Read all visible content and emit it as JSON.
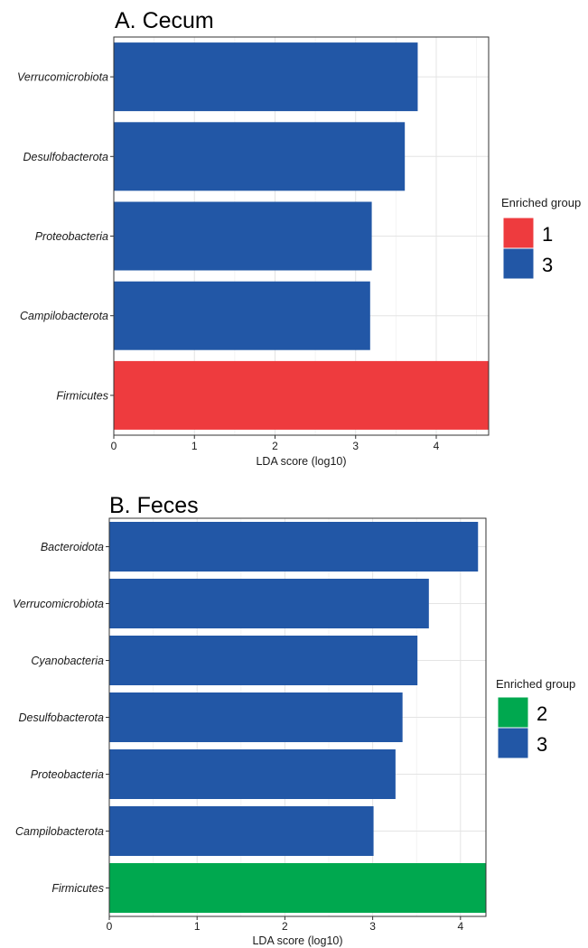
{
  "chart_data": [
    {
      "type": "bar",
      "orientation": "horizontal",
      "title": "A. Cecum",
      "xlabel": "LDA score (log10)",
      "ylabel": "",
      "xlim": [
        0,
        4.65
      ],
      "xticks": [
        "0",
        "1",
        "2",
        "3",
        "4"
      ],
      "grid": true,
      "legend_position": "right",
      "legend_title": "Enriched group",
      "legend": [
        {
          "label": "1",
          "color": "#ee3b3e"
        },
        {
          "label": "3",
          "color": "#2257a6"
        }
      ],
      "categories": [
        "Verrucomicrobiota",
        "Desulfobacterota",
        "Proteobacteria",
        "Campilobacterota",
        "Firmicutes"
      ],
      "values": [
        3.77,
        3.61,
        3.2,
        3.18,
        4.65
      ],
      "groups": [
        "3",
        "3",
        "3",
        "3",
        "1"
      ]
    },
    {
      "type": "bar",
      "orientation": "horizontal",
      "title": "B. Feces",
      "xlabel": "LDA score (log10)",
      "ylabel": "",
      "xlim": [
        0,
        4.29
      ],
      "xticks": [
        "0",
        "1",
        "2",
        "3",
        "4"
      ],
      "grid": true,
      "legend_position": "right",
      "legend_title": "Enriched group",
      "legend": [
        {
          "label": "2",
          "color": "#00a84f"
        },
        {
          "label": "3",
          "color": "#2257a6"
        }
      ],
      "categories": [
        "Bacteroidota",
        "Verrucomicrobiota",
        "Cyanobacteria",
        "Desulfobacterota",
        "Proteobacteria",
        "Campilobacterota",
        "Firmicutes"
      ],
      "values": [
        4.2,
        3.64,
        3.51,
        3.34,
        3.26,
        3.01,
        4.29
      ],
      "groups": [
        "3",
        "3",
        "3",
        "3",
        "3",
        "3",
        "2"
      ]
    }
  ]
}
